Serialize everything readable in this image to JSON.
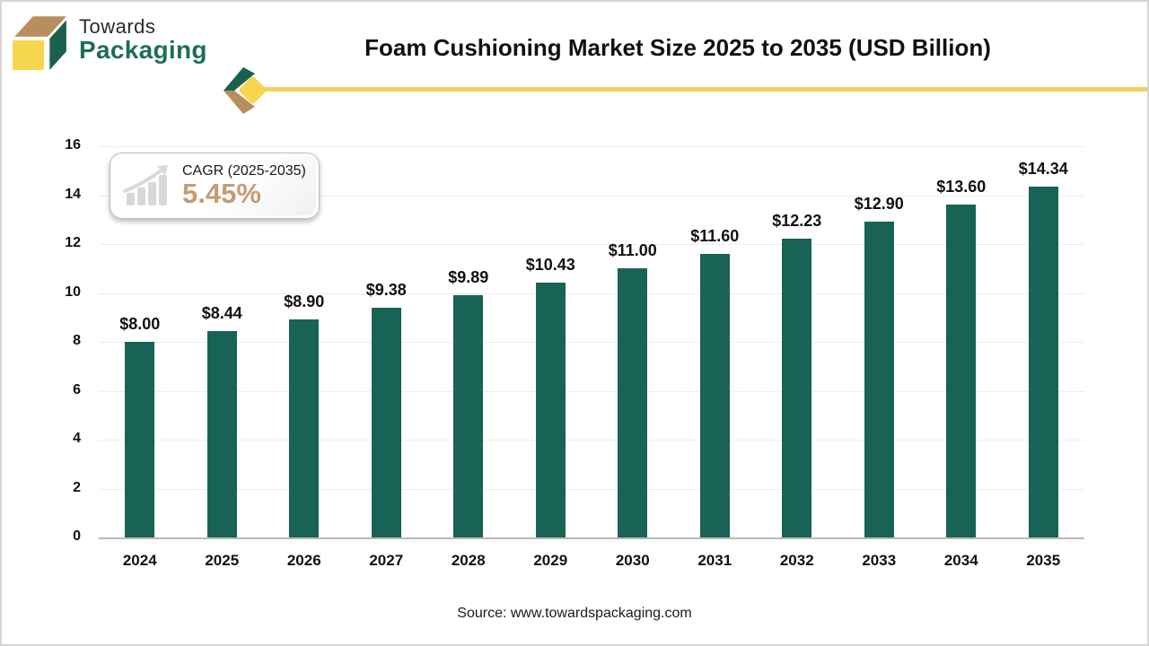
{
  "brand": {
    "name_top": "Towards",
    "name_bottom": "Packaging"
  },
  "header": {
    "title": "Foam Cushioning Market Size 2025 to 2035 (USD Billion)"
  },
  "cagr_badge": {
    "label": "CAGR (2025-2035)",
    "value": "5.45%"
  },
  "chart_data": {
    "type": "bar",
    "title": "Foam Cushioning Market Size 2025 to 2035 (USD Billion)",
    "categories": [
      "2024",
      "2025",
      "2026",
      "2027",
      "2028",
      "2029",
      "2030",
      "2031",
      "2032",
      "2033",
      "2034",
      "2035"
    ],
    "values": [
      8.0,
      8.44,
      8.9,
      9.38,
      9.89,
      10.43,
      11.0,
      11.6,
      12.23,
      12.9,
      13.6,
      14.34
    ],
    "bar_labels": [
      "$8.00",
      "$8.44",
      "$8.90",
      "$9.38",
      "$9.89",
      "$10.43",
      "$11.00",
      "$11.60",
      "$12.23",
      "$12.90",
      "$13.60",
      "$14.34"
    ],
    "xlabel": "",
    "ylabel": "",
    "ylim": [
      0,
      16
    ],
    "ytick_step": 2,
    "yticks": [
      0,
      2,
      4,
      6,
      8,
      10,
      12,
      14,
      16
    ],
    "grid": true,
    "legend": "none",
    "bar_color": "#186355"
  },
  "footer": {
    "source": "Source: www.towardspackaging.com"
  },
  "colors": {
    "bar": "#186355",
    "accent_gold": "#F2D05E",
    "logo_yellow": "#F7D64F",
    "logo_tan": "#B98E5F",
    "logo_green": "#19614E",
    "brand_green": "#1E6E55",
    "cagr_value": "#C49C72",
    "gridline": "#EDEDED",
    "axis_line": "#B9B9B9"
  }
}
